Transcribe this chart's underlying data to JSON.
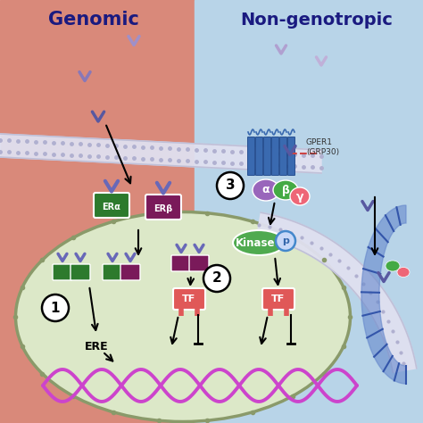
{
  "genomic_label": "Genomic",
  "non_genomic_label": "Non-genotropic",
  "bg_left_color": "#d9897a",
  "bg_right_color": "#b8d4e8",
  "membrane_color": "#e0e0f0",
  "membrane_border": "#c0c0d8",
  "cell_color": "#dce8c8",
  "cell_border": "#8a9a6a",
  "era_color": "#2d7a2d",
  "erb_color": "#7a1a5a",
  "ligand_light_color": "#a090c8",
  "ligand_dark_color": "#5858a0",
  "tf_color": "#e05858",
  "kinase_color": "#4faa4f",
  "dna_color": "#cc44cc",
  "dna_rung_color": "#664466",
  "gpcr_color": "#3a6ab0",
  "alpha_color": "#9966bb",
  "beta_color": "#44aa44",
  "gamma_color": "#ee6677",
  "p_fill": "#c8d8f8",
  "p_edge": "#4488cc",
  "endosome_color": "#5577aa",
  "ere_label": "ERE",
  "era_label": "ERα",
  "erb_label": "ERβ",
  "tf_label": "TF",
  "kinase_label": "Kinase",
  "gper_label": "GPER1\n(GRP30)",
  "circle1": "1",
  "circle2": "2",
  "circle3": "3",
  "header_color": "#1a1a80"
}
